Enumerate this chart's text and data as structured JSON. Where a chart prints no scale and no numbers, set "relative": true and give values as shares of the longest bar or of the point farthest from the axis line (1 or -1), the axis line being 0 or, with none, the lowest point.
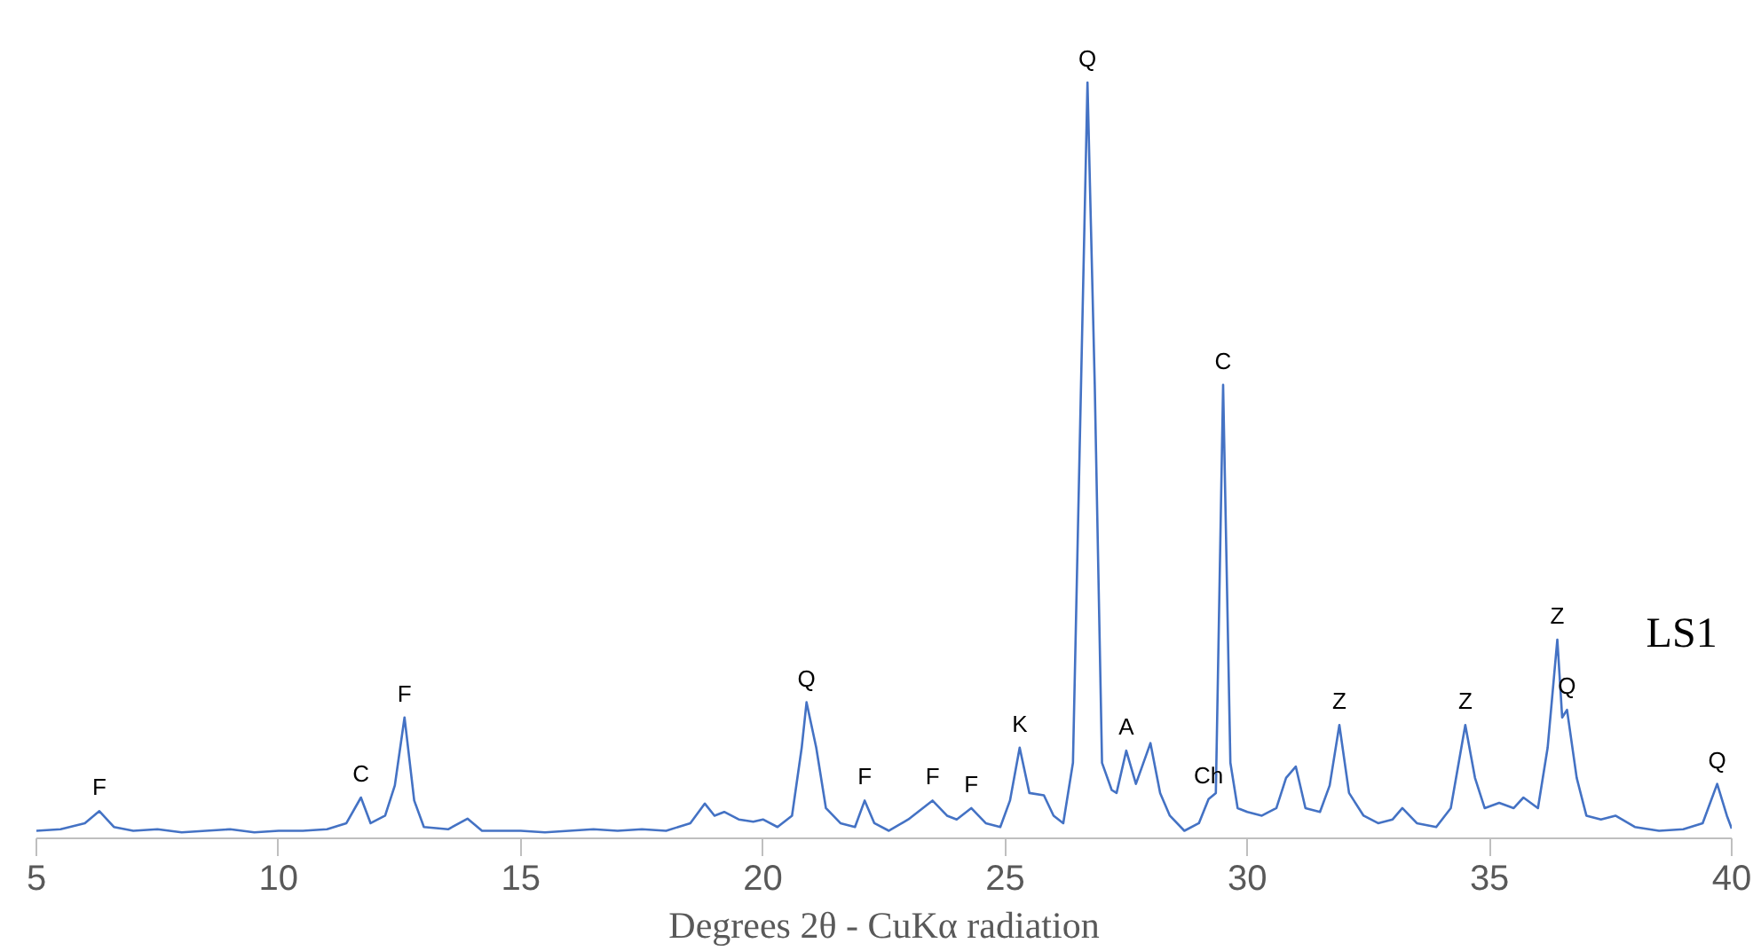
{
  "chart_data": {
    "type": "line",
    "relative": true,
    "xlabel": "Degrees 2θ - CuKα radiation",
    "xlim": [
      5,
      40
    ],
    "xticks": [
      5,
      10,
      15,
      20,
      25,
      30,
      35,
      40
    ],
    "line_style": "solid",
    "series": [
      {
        "color": "#4472c4",
        "x": [
          5.0,
          5.5,
          6.0,
          6.3,
          6.6,
          7.0,
          7.5,
          8.0,
          8.5,
          9.0,
          9.5,
          10.0,
          10.5,
          11.0,
          11.4,
          11.7,
          11.9,
          12.2,
          12.4,
          12.6,
          12.8,
          13.0,
          13.5,
          13.9,
          14.2,
          15.0,
          15.5,
          16.0,
          16.5,
          17.0,
          17.5,
          18.0,
          18.5,
          18.8,
          19.0,
          19.2,
          19.5,
          19.8,
          20.0,
          20.3,
          20.6,
          20.8,
          20.9,
          21.1,
          21.3,
          21.6,
          21.9,
          22.1,
          22.3,
          22.6,
          23.0,
          23.5,
          23.8,
          24.0,
          24.3,
          24.6,
          24.9,
          25.1,
          25.3,
          25.5,
          25.8,
          26.0,
          26.2,
          26.4,
          26.55,
          26.7,
          26.85,
          27.0,
          27.2,
          27.3,
          27.5,
          27.7,
          28.0,
          28.2,
          28.4,
          28.7,
          29.0,
          29.2,
          29.35,
          29.5,
          29.65,
          29.8,
          30.0,
          30.3,
          30.6,
          30.8,
          31.0,
          31.2,
          31.5,
          31.7,
          31.9,
          32.1,
          32.4,
          32.7,
          33.0,
          33.2,
          33.5,
          33.9,
          34.2,
          34.5,
          34.7,
          34.9,
          35.2,
          35.5,
          35.7,
          36.0,
          36.2,
          36.4,
          36.5,
          36.6,
          36.8,
          37.0,
          37.3,
          37.6,
          38.0,
          38.5,
          39.0,
          39.4,
          39.7,
          39.9,
          40.0
        ],
        "values": [
          0.01,
          0.012,
          0.02,
          0.036,
          0.015,
          0.01,
          0.012,
          0.008,
          0.01,
          0.012,
          0.008,
          0.01,
          0.01,
          0.012,
          0.02,
          0.054,
          0.02,
          0.03,
          0.07,
          0.16,
          0.05,
          0.015,
          0.012,
          0.026,
          0.01,
          0.01,
          0.008,
          0.01,
          0.012,
          0.01,
          0.012,
          0.01,
          0.02,
          0.046,
          0.03,
          0.035,
          0.025,
          0.022,
          0.025,
          0.015,
          0.03,
          0.12,
          0.18,
          0.12,
          0.04,
          0.02,
          0.015,
          0.05,
          0.02,
          0.01,
          0.025,
          0.05,
          0.03,
          0.025,
          0.04,
          0.02,
          0.015,
          0.05,
          0.12,
          0.06,
          0.057,
          0.03,
          0.02,
          0.1,
          0.55,
          1.0,
          0.6,
          0.1,
          0.064,
          0.06,
          0.116,
          0.072,
          0.126,
          0.06,
          0.03,
          0.01,
          0.02,
          0.052,
          0.06,
          0.6,
          0.1,
          0.04,
          0.035,
          0.03,
          0.04,
          0.08,
          0.095,
          0.04,
          0.035,
          0.07,
          0.15,
          0.06,
          0.03,
          0.02,
          0.025,
          0.04,
          0.02,
          0.015,
          0.04,
          0.15,
          0.08,
          0.04,
          0.047,
          0.04,
          0.054,
          0.04,
          0.12,
          0.263,
          0.16,
          0.17,
          0.08,
          0.03,
          0.025,
          0.03,
          0.015,
          0.01,
          0.012,
          0.02,
          0.072,
          0.03,
          0.013
        ]
      }
    ],
    "annotations": [
      {
        "text": "F",
        "x": 6.3,
        "y": 0.036
      },
      {
        "text": "C",
        "x": 11.7,
        "y": 0.054
      },
      {
        "text": "F",
        "x": 12.6,
        "y": 0.16
      },
      {
        "text": "Q",
        "x": 20.9,
        "y": 0.18
      },
      {
        "text": "F",
        "x": 22.1,
        "y": 0.05
      },
      {
        "text": "F",
        "x": 23.5,
        "y": 0.05
      },
      {
        "text": "F",
        "x": 24.3,
        "y": 0.04
      },
      {
        "text": "K",
        "x": 25.3,
        "y": 0.12
      },
      {
        "text": "Q",
        "x": 26.7,
        "y": 1.0
      },
      {
        "text": "A",
        "x": 27.5,
        "y": 0.116
      },
      {
        "text": "Ch",
        "x": 29.2,
        "y": 0.052
      },
      {
        "text": "C",
        "x": 29.5,
        "y": 0.6
      },
      {
        "text": "Z",
        "x": 31.9,
        "y": 0.15
      },
      {
        "text": "Z",
        "x": 34.5,
        "y": 0.15
      },
      {
        "text": "Z",
        "x": 36.4,
        "y": 0.263
      },
      {
        "text": "Q",
        "x": 36.6,
        "y": 0.17
      },
      {
        "text": "Q",
        "x": 39.7,
        "y": 0.072
      },
      "LS1"
    ]
  }
}
